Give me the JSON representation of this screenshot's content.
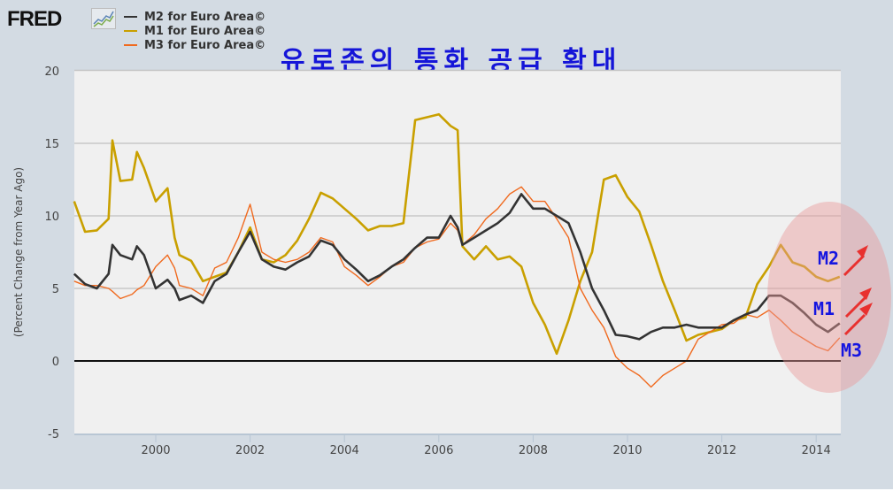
{
  "header": {
    "logo_text": "FRED",
    "logo_icon": "line-chart-icon",
    "title_korean": "유로존의 통화 공급 확대"
  },
  "annotations": {
    "labels": [
      "M2",
      "M1",
      "M3"
    ],
    "arrow_color": "#e8312f",
    "highlight_color": "#e89a9a"
  },
  "chart_data": {
    "type": "line",
    "title": "유로존의 통화 공급 확대",
    "xlabel": "",
    "ylabel": "(Percent Change from Year Ago)",
    "xlim": [
      1998.27,
      2014.5
    ],
    "ylim": [
      -5,
      20
    ],
    "x_ticks": [
      2000,
      2002,
      2004,
      2006,
      2008,
      2010,
      2012,
      2014
    ],
    "x_tick_labels": [
      "2000",
      "2002",
      "2004",
      "2006",
      "2008",
      "2010",
      "2012",
      "2014"
    ],
    "y_ticks": [
      -5,
      0,
      5,
      10,
      15,
      20
    ],
    "y_tick_labels": [
      "-5",
      "0",
      "5",
      "10",
      "15",
      "20"
    ],
    "grid": true,
    "legend_position": "top-left",
    "x": [
      1998.27,
      1998.5,
      1998.75,
      1999.0,
      1999.08,
      1999.25,
      1999.5,
      1999.6,
      1999.75,
      2000.0,
      2000.25,
      2000.4,
      2000.5,
      2000.75,
      2001.0,
      2001.25,
      2001.5,
      2001.75,
      2002.0,
      2002.25,
      2002.5,
      2002.75,
      2003.0,
      2003.25,
      2003.5,
      2003.75,
      2004.0,
      2004.25,
      2004.5,
      2004.75,
      2005.0,
      2005.25,
      2005.5,
      2005.75,
      2006.0,
      2006.25,
      2006.4,
      2006.5,
      2006.75,
      2007.0,
      2007.25,
      2007.5,
      2007.75,
      2008.0,
      2008.25,
      2008.5,
      2008.75,
      2009.0,
      2009.25,
      2009.5,
      2009.75,
      2010.0,
      2010.25,
      2010.5,
      2010.75,
      2011.0,
      2011.25,
      2011.5,
      2011.75,
      2012.0,
      2012.25,
      2012.5,
      2012.75,
      2013.0,
      2013.25,
      2013.5,
      2013.75,
      2014.0,
      2014.25,
      2014.5
    ],
    "series": [
      {
        "name": "M2 for Euro Area©",
        "color": "#333333",
        "values": [
          6.0,
          5.3,
          5.0,
          6.0,
          8.0,
          7.3,
          7.0,
          7.9,
          7.3,
          5.0,
          5.6,
          5.0,
          4.2,
          4.5,
          4.0,
          5.5,
          6.0,
          7.5,
          8.9,
          7.0,
          6.5,
          6.3,
          6.8,
          7.2,
          8.3,
          8.0,
          7.0,
          6.3,
          5.5,
          5.9,
          6.5,
          7.0,
          7.8,
          8.5,
          8.5,
          10.0,
          9.2,
          8.0,
          8.5,
          9.0,
          9.5,
          10.2,
          11.5,
          10.5,
          10.5,
          10.0,
          9.5,
          7.5,
          5.0,
          3.5,
          1.8,
          1.7,
          1.5,
          2.0,
          2.3,
          2.3,
          2.5,
          2.3,
          2.3,
          2.3,
          2.8,
          3.2,
          3.5,
          4.5,
          4.5,
          4.0,
          3.3,
          2.5,
          2.0,
          2.6
        ]
      },
      {
        "name": "M1 for Euro Area©",
        "color": "#c9a000",
        "values": [
          11.0,
          8.9,
          9.0,
          9.8,
          15.2,
          12.4,
          12.5,
          14.4,
          13.3,
          11.0,
          11.9,
          8.5,
          7.3,
          6.9,
          5.5,
          5.8,
          6.1,
          7.5,
          9.2,
          7.0,
          6.8,
          7.3,
          8.3,
          9.8,
          11.6,
          11.2,
          10.5,
          9.8,
          9.0,
          9.3,
          9.3,
          9.5,
          16.6,
          16.8,
          17.0,
          16.2,
          15.9,
          7.9,
          7.0,
          7.9,
          7.0,
          7.2,
          6.5,
          4.0,
          2.5,
          0.5,
          2.8,
          5.5,
          7.5,
          12.5,
          12.8,
          11.3,
          10.3,
          8.0,
          5.5,
          3.5,
          1.4,
          1.8,
          2.0,
          2.2,
          2.8,
          3.0,
          5.3,
          6.5,
          8.0,
          6.8,
          6.5,
          5.8,
          5.5,
          5.8
        ]
      },
      {
        "name": "M3 for Euro Area©",
        "color": "#f06a1f",
        "values": [
          5.5,
          5.2,
          5.2,
          5.0,
          4.8,
          4.3,
          4.6,
          4.9,
          5.2,
          6.5,
          7.3,
          6.4,
          5.2,
          5.0,
          4.5,
          6.4,
          6.8,
          8.5,
          10.8,
          7.5,
          7.0,
          6.8,
          7.0,
          7.5,
          8.5,
          8.2,
          6.5,
          5.9,
          5.2,
          5.8,
          6.5,
          6.8,
          7.8,
          8.2,
          8.4,
          9.5,
          9.0,
          8.0,
          8.7,
          9.8,
          10.5,
          11.5,
          12.0,
          11.0,
          11.0,
          9.8,
          8.5,
          5.0,
          3.5,
          2.3,
          0.3,
          -0.5,
          -1.0,
          -1.8,
          -1.0,
          -0.5,
          0.0,
          1.5,
          2.0,
          2.5,
          2.6,
          3.2,
          3.0,
          3.5,
          2.8,
          2.0,
          1.5,
          1.0,
          0.7,
          1.6
        ]
      }
    ]
  }
}
